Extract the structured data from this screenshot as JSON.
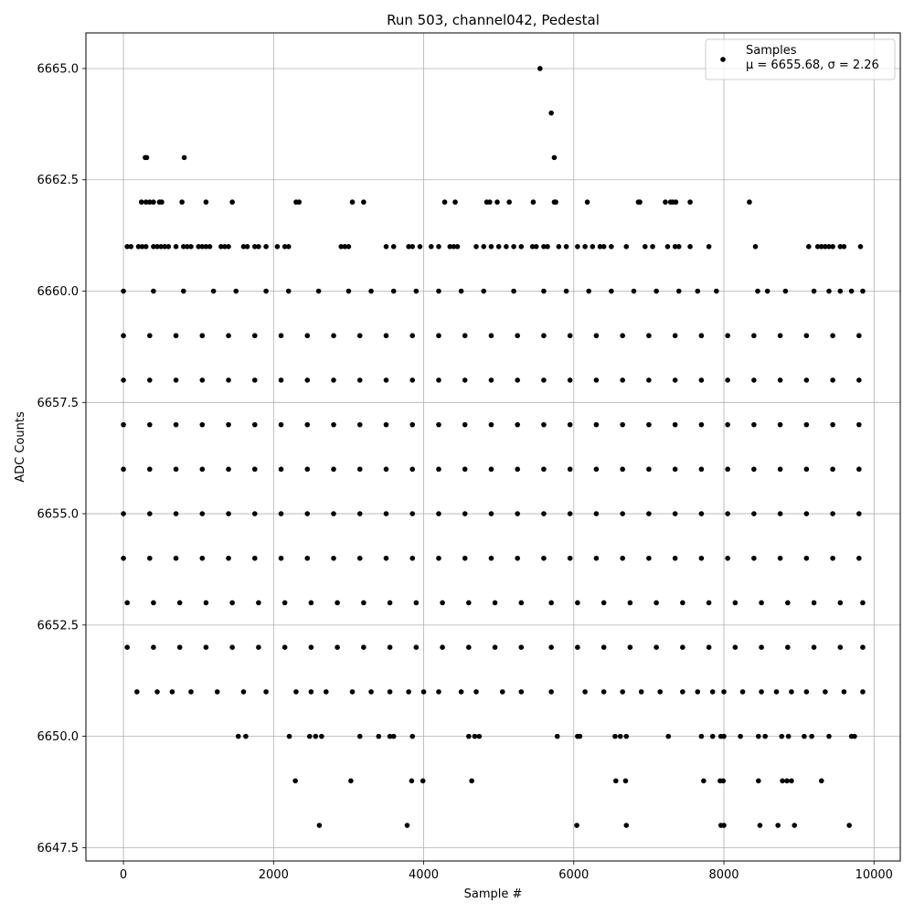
{
  "chart_data": {
    "type": "scatter",
    "title": "Run 503, channel042, Pedestal",
    "xlabel": "Sample #",
    "ylabel": "ADC Counts",
    "xlim": [
      -500,
      10350
    ],
    "ylim": [
      6647.2,
      6665.8
    ],
    "grid": true,
    "legend_placement": "top-right",
    "x_ticks": [
      0,
      2000,
      4000,
      6000,
      8000,
      10000
    ],
    "x_tick_labels": [
      "0",
      "2000",
      "4000",
      "6000",
      "8000",
      "10000"
    ],
    "y_ticks": [
      6647.5,
      6650.0,
      6652.5,
      6655.0,
      6657.5,
      6660.0,
      6662.5,
      6665.0
    ],
    "y_tick_labels": [
      "6647.5",
      "6650.0",
      "6652.5",
      "6655.0",
      "6657.5",
      "6660.0",
      "6662.5",
      "6665.0"
    ],
    "marker_color": "#000000",
    "series": [
      {
        "name": "Samples",
        "stats_label": "μ = 6655.68, σ = 2.26",
        "x_range": [
          0,
          9850
        ],
        "levels": [
          {
            "y": 6665,
            "x": [
              5550
            ]
          },
          {
            "y": 6664,
            "x": [
              5700
            ]
          },
          {
            "y": 6663,
            "x": [
              290,
              310,
              810,
              5740
            ]
          },
          {
            "y": 6662,
            "x": [
              240,
              300,
              350,
              400,
              480,
              510,
              780,
              1100,
              1450,
              2300,
              2340,
              3050,
              3200,
              4280,
              4420,
              4840,
              4880,
              4980,
              5140,
              5460,
              5740,
              5760,
              6180,
              6860,
              6880,
              7220,
              7290,
              7320,
              7360,
              7550,
              8340
            ]
          },
          {
            "y": 6661,
            "x": [
              50,
              100,
              200,
              250,
              300,
              400,
              450,
              500,
              550,
              600,
              700,
              800,
              850,
              900,
              1000,
              1050,
              1100,
              1150,
              1300,
              1350,
              1400,
              1600,
              1650,
              1750,
              1800,
              1900,
              2050,
              2150,
              2200,
              2900,
              2950,
              3000,
              3500,
              3600,
              3800,
              3850,
              3950,
              4100,
              4200,
              4350,
              4400,
              4450,
              4700,
              4800,
              4900,
              5000,
              5100,
              5200,
              5300,
              5450,
              5500,
              5600,
              5650,
              5800,
              5900,
              6050,
              6150,
              6250,
              6350,
              6400,
              6500,
              6700,
              6950,
              7050,
              7250,
              7350,
              7400,
              7550,
              7800,
              8420,
              9130,
              9250,
              9300,
              9350,
              9400,
              9450,
              9550,
              9600,
              9820
            ]
          },
          {
            "y": 6660,
            "x": [
              0,
              400,
              800,
              1200,
              1500,
              1900,
              2200,
              2600,
              3000,
              3300,
              3600,
              3900,
              4200,
              4500,
              4800,
              5200,
              5600,
              5900,
              6200,
              6500,
              6800,
              7100,
              7400,
              7650,
              7900,
              8450,
              8580,
              8820,
              9200,
              9400,
              9550,
              9700,
              9850
            ]
          },
          {
            "y": 6659,
            "x": [
              0,
              350,
              700,
              1050,
              1400,
              1750,
              2100,
              2450,
              2800,
              3150,
              3500,
              3850,
              4200,
              4550,
              4900,
              5250,
              5600,
              5950,
              6300,
              6650,
              7000,
              7350,
              7700,
              8050,
              8400,
              8750,
              9100,
              9450,
              9800
            ]
          },
          {
            "y": 6658,
            "x": [
              0,
              350,
              700,
              1050,
              1400,
              1750,
              2100,
              2450,
              2800,
              3150,
              3500,
              3850,
              4200,
              4550,
              4900,
              5250,
              5600,
              5950,
              6300,
              6650,
              7000,
              7350,
              7700,
              8050,
              8400,
              8750,
              9100,
              9450,
              9800
            ]
          },
          {
            "y": 6657,
            "x": [
              0,
              350,
              700,
              1050,
              1400,
              1750,
              2100,
              2450,
              2800,
              3150,
              3500,
              3850,
              4200,
              4550,
              4900,
              5250,
              5600,
              5950,
              6300,
              6650,
              7000,
              7350,
              7700,
              8050,
              8400,
              8750,
              9100,
              9450,
              9800
            ]
          },
          {
            "y": 6656,
            "x": [
              0,
              350,
              700,
              1050,
              1400,
              1750,
              2100,
              2450,
              2800,
              3150,
              3500,
              3850,
              4200,
              4550,
              4900,
              5250,
              5600,
              5950,
              6300,
              6650,
              7000,
              7350,
              7700,
              8050,
              8400,
              8750,
              9100,
              9450,
              9800
            ]
          },
          {
            "y": 6655,
            "x": [
              0,
              350,
              700,
              1050,
              1400,
              1750,
              2100,
              2450,
              2800,
              3150,
              3500,
              3850,
              4200,
              4550,
              4900,
              5250,
              5600,
              5950,
              6300,
              6650,
              7000,
              7350,
              7700,
              8050,
              8400,
              8750,
              9100,
              9450,
              9800
            ]
          },
          {
            "y": 6654,
            "x": [
              0,
              350,
              700,
              1050,
              1400,
              1750,
              2100,
              2450,
              2800,
              3150,
              3500,
              3850,
              4200,
              4550,
              4900,
              5250,
              5600,
              5950,
              6300,
              6650,
              7000,
              7350,
              7700,
              8050,
              8400,
              8750,
              9100,
              9450,
              9800
            ]
          },
          {
            "y": 6653,
            "x": [
              50,
              400,
              750,
              1100,
              1450,
              1800,
              2150,
              2500,
              2850,
              3200,
              3550,
              3900,
              4250,
              4600,
              4950,
              5300,
              5700,
              6050,
              6400,
              6750,
              7100,
              7450,
              7800,
              8150,
              8500,
              8850,
              9200,
              9550,
              9850
            ]
          },
          {
            "y": 6652,
            "x": [
              50,
              400,
              750,
              1100,
              1450,
              1800,
              2150,
              2500,
              2850,
              3200,
              3550,
              3900,
              4250,
              4600,
              4950,
              5300,
              5700,
              6050,
              6400,
              6750,
              7100,
              7450,
              7800,
              8150,
              8500,
              8850,
              9200,
              9550,
              9850
            ]
          },
          {
            "y": 6651,
            "x": [
              180,
              450,
              650,
              900,
              1250,
              1600,
              1900,
              2300,
              2500,
              2700,
              3050,
              3300,
              3550,
              3800,
              4000,
              4200,
              4500,
              4700,
              5050,
              5300,
              5700,
              6150,
              6400,
              6650,
              6900,
              7150,
              7450,
              7650,
              7850,
              8000,
              8250,
              8500,
              8700,
              8900,
              9100,
              9350,
              9600,
              9850
            ]
          },
          {
            "y": 6650,
            "x": [
              1530,
              1630,
              2210,
              2480,
              2560,
              2640,
              3150,
              3400,
              3550,
              3600,
              3850,
              4600,
              4680,
              4740,
              5780,
              6050,
              6080,
              6550,
              6620,
              6700,
              7260,
              7700,
              7850,
              7960,
              8000,
              8220,
              8460,
              8550,
              8770,
              8860,
              9070,
              9170,
              9400,
              9700,
              9740
            ]
          },
          {
            "y": 6649,
            "x": [
              2290,
              3030,
              3840,
              3990,
              4640,
              6560,
              6690,
              7730,
              7950,
              7990,
              8460,
              8780,
              8840,
              8900,
              9300
            ]
          },
          {
            "y": 6648,
            "x": [
              2610,
              3780,
              6040,
              6700,
              7960,
              8000,
              8480,
              8720,
              8940,
              9670
            ]
          }
        ]
      }
    ]
  }
}
